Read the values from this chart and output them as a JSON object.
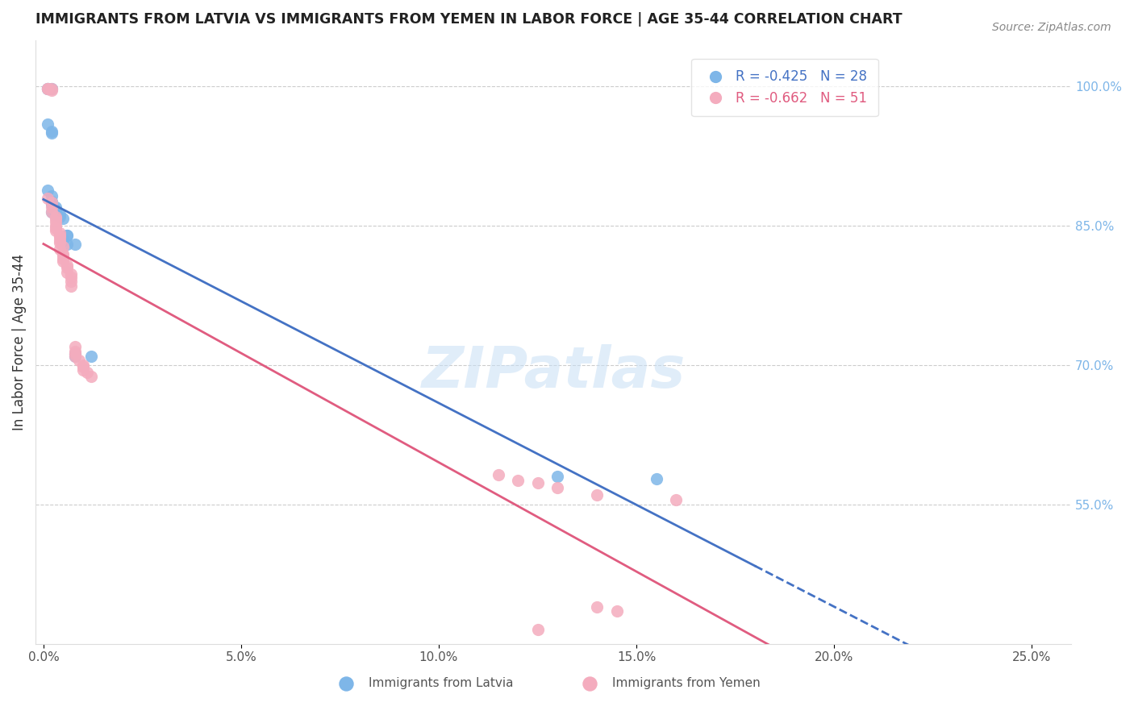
{
  "title": "IMMIGRANTS FROM LATVIA VS IMMIGRANTS FROM YEMEN IN LABOR FORCE | AGE 35-44 CORRELATION CHART",
  "source": "Source: ZipAtlas.com",
  "ylabel": "In Labor Force | Age 35-44",
  "xlabel_ticks": [
    0.0,
    0.05,
    0.1,
    0.15,
    0.2,
    0.25
  ],
  "xlabel_labels": [
    "0.0%",
    "5.0%",
    "10.0%",
    "15.0%",
    "20.0%",
    "25.0%"
  ],
  "ylabel_right_ticks": [
    0.55,
    0.7,
    0.85,
    1.0
  ],
  "ylabel_right_labels": [
    "55.0%",
    "70.0%",
    "85.0%",
    "100.0%"
  ],
  "ylim": [
    0.4,
    1.05
  ],
  "xlim": [
    -0.002,
    0.26
  ],
  "legend_latvia": "R = -0.425   N = 28",
  "legend_yemen": "R = -0.662   N = 51",
  "watermark": "ZIPatlas",
  "blue_color": "#7EB6E8",
  "blue_line_color": "#4472C4",
  "pink_color": "#F4ACBE",
  "pink_line_color": "#E05C80",
  "blue_scatter": [
    [
      0.001,
      0.998
    ],
    [
      0.001,
      0.998
    ],
    [
      0.002,
      0.998
    ],
    [
      0.001,
      0.96
    ],
    [
      0.002,
      0.952
    ],
    [
      0.002,
      0.95
    ],
    [
      0.001,
      0.888
    ],
    [
      0.002,
      0.882
    ],
    [
      0.002,
      0.876
    ],
    [
      0.002,
      0.874
    ],
    [
      0.003,
      0.87
    ],
    [
      0.003,
      0.868
    ],
    [
      0.002,
      0.865
    ],
    [
      0.003,
      0.865
    ],
    [
      0.003,
      0.862
    ],
    [
      0.004,
      0.862
    ],
    [
      0.004,
      0.86
    ],
    [
      0.005,
      0.858
    ],
    [
      0.006,
      0.84
    ],
    [
      0.006,
      0.84
    ],
    [
      0.005,
      0.835
    ],
    [
      0.006,
      0.83
    ],
    [
      0.008,
      0.83
    ],
    [
      0.008,
      0.712
    ],
    [
      0.008,
      0.71
    ],
    [
      0.012,
      0.71
    ],
    [
      0.13,
      0.58
    ],
    [
      0.155,
      0.578
    ]
  ],
  "pink_scatter": [
    [
      0.001,
      0.998
    ],
    [
      0.001,
      0.998
    ],
    [
      0.002,
      0.998
    ],
    [
      0.002,
      0.996
    ],
    [
      0.001,
      0.88
    ],
    [
      0.002,
      0.875
    ],
    [
      0.002,
      0.87
    ],
    [
      0.002,
      0.865
    ],
    [
      0.003,
      0.86
    ],
    [
      0.003,
      0.858
    ],
    [
      0.003,
      0.855
    ],
    [
      0.003,
      0.85
    ],
    [
      0.003,
      0.848
    ],
    [
      0.003,
      0.845
    ],
    [
      0.004,
      0.842
    ],
    [
      0.004,
      0.84
    ],
    [
      0.004,
      0.838
    ],
    [
      0.004,
      0.835
    ],
    [
      0.004,
      0.832
    ],
    [
      0.005,
      0.828
    ],
    [
      0.004,
      0.825
    ],
    [
      0.005,
      0.82
    ],
    [
      0.005,
      0.818
    ],
    [
      0.005,
      0.815
    ],
    [
      0.005,
      0.812
    ],
    [
      0.006,
      0.808
    ],
    [
      0.006,
      0.805
    ],
    [
      0.006,
      0.8
    ],
    [
      0.007,
      0.798
    ],
    [
      0.007,
      0.795
    ],
    [
      0.007,
      0.79
    ],
    [
      0.007,
      0.785
    ],
    [
      0.008,
      0.72
    ],
    [
      0.008,
      0.715
    ],
    [
      0.008,
      0.712
    ],
    [
      0.008,
      0.71
    ],
    [
      0.009,
      0.705
    ],
    [
      0.01,
      0.7
    ],
    [
      0.01,
      0.698
    ],
    [
      0.01,
      0.695
    ],
    [
      0.011,
      0.692
    ],
    [
      0.012,
      0.688
    ],
    [
      0.115,
      0.582
    ],
    [
      0.12,
      0.576
    ],
    [
      0.125,
      0.573
    ],
    [
      0.13,
      0.568
    ],
    [
      0.14,
      0.56
    ],
    [
      0.16,
      0.555
    ],
    [
      0.14,
      0.44
    ],
    [
      0.145,
      0.435
    ],
    [
      0.125,
      0.415
    ]
  ]
}
